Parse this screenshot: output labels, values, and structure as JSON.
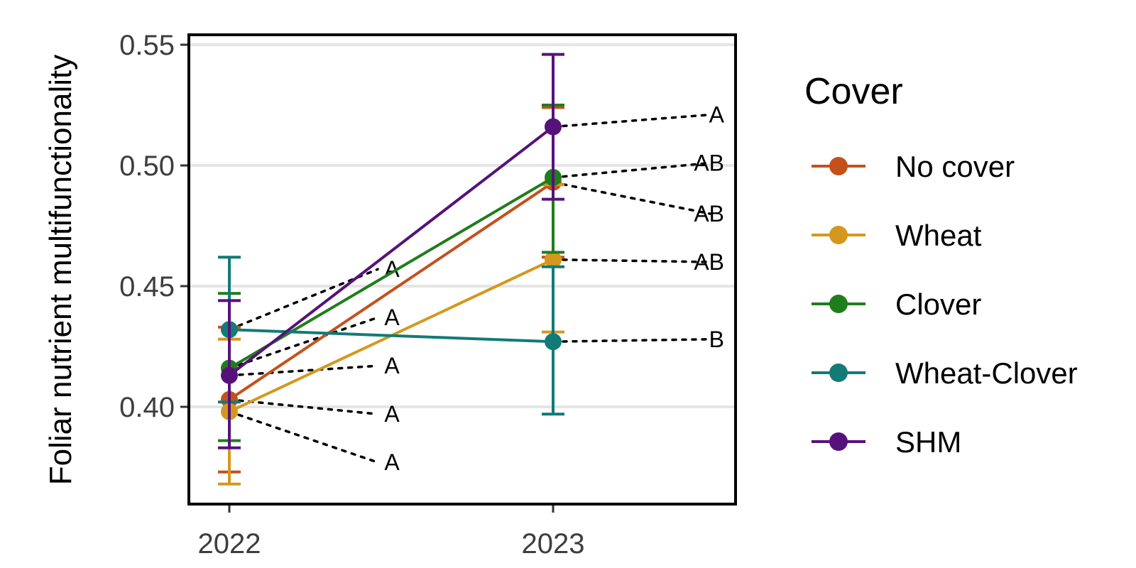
{
  "chart_data": {
    "type": "line",
    "title": "",
    "xlabel": "",
    "ylabel": "Foliar nutrient multifunctionality",
    "categories": [
      "2022",
      "2023"
    ],
    "ylim": [
      0.36,
      0.555
    ],
    "yticks": [
      0.4,
      0.45,
      0.5,
      0.55
    ],
    "ytick_labels": [
      "0.40",
      "0.45",
      "0.50",
      "0.55"
    ],
    "grid": "horizontal major",
    "legend": {
      "title": "Cover",
      "position": "right"
    },
    "series": [
      {
        "name": "No cover",
        "color": "#C4511C",
        "values": [
          0.403,
          0.493
        ],
        "lower": [
          0.373,
          0.462
        ],
        "upper": [
          0.433,
          0.524
        ]
      },
      {
        "name": "Wheat",
        "color": "#D4981E",
        "values": [
          0.398,
          0.461
        ],
        "lower": [
          0.368,
          0.431
        ],
        "upper": [
          0.428,
          0.492
        ]
      },
      {
        "name": "Clover",
        "color": "#207D1B",
        "values": [
          0.416,
          0.495
        ],
        "lower": [
          0.386,
          0.464
        ],
        "upper": [
          0.447,
          0.525
        ]
      },
      {
        "name": "Wheat-Clover",
        "color": "#127A77",
        "values": [
          0.432,
          0.427
        ],
        "lower": [
          0.402,
          0.397
        ],
        "upper": [
          0.462,
          0.458
        ]
      },
      {
        "name": "SHM",
        "color": "#56127A",
        "values": [
          0.413,
          0.516
        ],
        "lower": [
          0.383,
          0.486
        ],
        "upper": [
          0.444,
          0.546
        ]
      }
    ],
    "letters": [
      {
        "year": "2022",
        "anchor": 0.432,
        "label_y": 0.457,
        "text": "A"
      },
      {
        "year": "2022",
        "anchor": 0.416,
        "label_y": 0.437,
        "text": "A"
      },
      {
        "year": "2022",
        "anchor": 0.413,
        "label_y": 0.417,
        "text": "A"
      },
      {
        "year": "2022",
        "anchor": 0.403,
        "label_y": 0.397,
        "text": "A"
      },
      {
        "year": "2022",
        "anchor": 0.398,
        "label_y": 0.377,
        "text": "A"
      },
      {
        "year": "2023",
        "anchor": 0.516,
        "label_y": 0.521,
        "text": "A"
      },
      {
        "year": "2023",
        "anchor": 0.495,
        "label_y": 0.501,
        "text": "AB"
      },
      {
        "year": "2023",
        "anchor": 0.493,
        "label_y": 0.48,
        "text": "AB"
      },
      {
        "year": "2023",
        "anchor": 0.461,
        "label_y": 0.46,
        "text": "AB"
      },
      {
        "year": "2023",
        "anchor": 0.427,
        "label_y": 0.428,
        "text": "B"
      }
    ]
  }
}
